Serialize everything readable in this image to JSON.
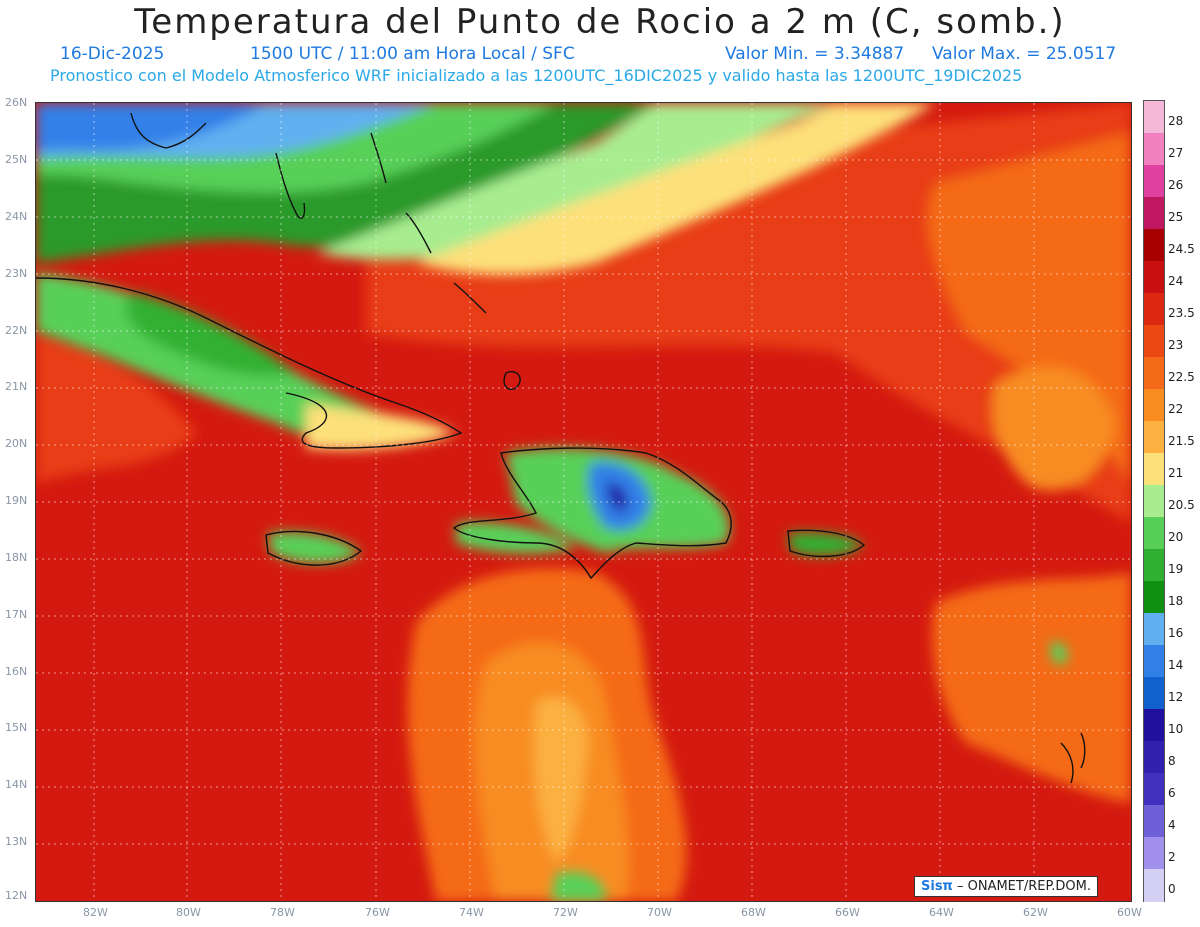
{
  "header": {
    "title": "Temperatura del Punto de Rocio a 2 m (C, somb.)",
    "date": "16-Dic-2025",
    "time": "1500 UTC / 11:00 am Hora Local / SFC",
    "min_label": "Valor Min. = 3.34887",
    "max_label": "Valor Max. = 25.0517",
    "model_line": "Pronostico con el Modelo Atmosferico WRF inicializado a las 1200UTC_16DIC2025 y valido hasta las  1200UTC_19DIC2025"
  },
  "map": {
    "lat_labels": [
      "26N",
      "25N",
      "24N",
      "23N",
      "22N",
      "21N",
      "20N",
      "19N",
      "18N",
      "17N",
      "16N",
      "15N",
      "14N",
      "13N",
      "12N"
    ],
    "lon_labels": [
      "82W",
      "80W",
      "78W",
      "76W",
      "74W",
      "72W",
      "70W",
      "68W",
      "66W",
      "64W",
      "62W",
      "60W"
    ],
    "credit_brand": "Sisπ",
    "credit_text": " – ONAMET/REP.DOM."
  },
  "colorbar": {
    "labels": [
      "28",
      "27",
      "26",
      "25",
      "24.5",
      "24",
      "23.5",
      "23",
      "22.5",
      "22",
      "21.5",
      "21",
      "20.5",
      "20",
      "19",
      "18",
      "16",
      "14",
      "12",
      "10",
      "8",
      "6",
      "4",
      "2",
      "0"
    ],
    "colors": [
      "#f5b8d8",
      "#f080c0",
      "#e040a0",
      "#c01860",
      "#a80000",
      "#c81010",
      "#dc2810",
      "#ec4814",
      "#f46a18",
      "#f88c20",
      "#fbb040",
      "#fde07a",
      "#a8ec90",
      "#58d058",
      "#30b030",
      "#109010",
      "#60b0f0",
      "#3080e8",
      "#1060d0",
      "#2010a0",
      "#3020b0",
      "#4030c0",
      "#7060d8",
      "#a090ec",
      "#d4d0f4"
    ]
  }
}
